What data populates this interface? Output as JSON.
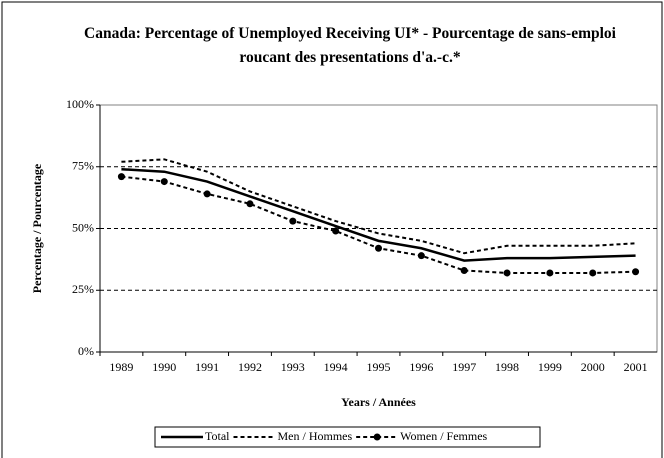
{
  "chart_data": {
    "type": "line",
    "title": "Canada: Percentage of Unemployed Receiving UI* - Pourcentage de sans-emploi roucant des presentations d'a.-c.*",
    "x_label": "Years / Années",
    "y_label": "Percentage / Pourcentage",
    "categories": [
      "1989",
      "1990",
      "1991",
      "1992",
      "1993",
      "1994",
      "1995",
      "1996",
      "1997",
      "1998",
      "1999",
      "2000",
      "2001"
    ],
    "series": [
      {
        "name": "Total",
        "color": "#000000",
        "line_style": "solid",
        "markers": false,
        "values": [
          74,
          73,
          69,
          63,
          57,
          51,
          45,
          42,
          37,
          38,
          38,
          38.5,
          39
        ]
      },
      {
        "name": "Men / Hommes",
        "color": "#000000",
        "line_style": "dashed",
        "markers": false,
        "values": [
          77,
          78,
          73,
          65,
          59,
          53,
          48,
          45,
          40,
          43,
          43,
          43,
          44
        ]
      },
      {
        "name": "Women / Femmes",
        "color": "#000000",
        "line_style": "dashed",
        "markers": true,
        "values": [
          71,
          69,
          64,
          60,
          53,
          49,
          42,
          39,
          33,
          32,
          32,
          32,
          32.5
        ]
      }
    ],
    "ylim": [
      0,
      100
    ],
    "yticks": [
      {
        "value": 0,
        "label": "0%"
      },
      {
        "value": 25,
        "label": "25%"
      },
      {
        "value": 50,
        "label": "50%"
      },
      {
        "value": 75,
        "label": "75%"
      },
      {
        "value": 100,
        "label": "100%"
      }
    ],
    "grid": true,
    "legend": "bottom"
  }
}
